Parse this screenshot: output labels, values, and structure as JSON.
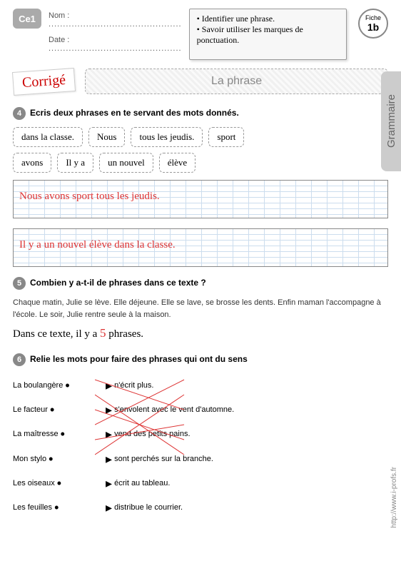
{
  "header": {
    "level": "Ce1",
    "nom_label": "Nom :",
    "date_label": "Date :",
    "dots": "..............................................",
    "obj1": "Identifier une phrase.",
    "obj2": "Savoir utiliser les marques de ponctuation.",
    "fiche_label": "Fiche",
    "fiche_num": "1b"
  },
  "sidebar": {
    "subject": "Grammaire",
    "credit": "http://www.i-profs.fr"
  },
  "corrige": "Corrigé",
  "title": "La phrase",
  "ex4": {
    "num": "4",
    "instr": "Ecris deux phrases en te servant des mots donnés.",
    "words1": [
      "dans la classe.",
      "Nous",
      "tous les jeudis.",
      "sport"
    ],
    "words2": [
      "avons",
      "Il y a",
      "un nouvel",
      "élève"
    ],
    "ans1": "Nous avons sport tous les jeudis.",
    "ans2": "Il y a un nouvel élève dans la classe."
  },
  "ex5": {
    "num": "5",
    "instr": "Combien y a-t-il de phrases dans ce texte ?",
    "text": "Chaque matin, Julie se lève. Elle déjeune. Elle se lave, se brosse les dents. Enfin maman l'accompagne à l'école. Le soir, Julie rentre seule à la maison.",
    "ans_pre": "Dans ce texte, il y a ",
    "ans_num": "5",
    "ans_post": " phrases."
  },
  "ex6": {
    "num": "6",
    "instr": "Relie les mots pour faire des phrases qui ont du sens",
    "left": [
      "La boulangère",
      "Le facteur",
      "La maîtresse",
      "Mon stylo",
      "Les oiseaux",
      "Les feuilles"
    ],
    "right": [
      "n'écrit plus.",
      "s'envolent avec le vent d'automne.",
      "vend des petits pains.",
      "sont perchés sur la branche.",
      "écrit au tableau.",
      "distribue le courrier."
    ],
    "lines": [
      [
        0,
        2
      ],
      [
        1,
        5
      ],
      [
        2,
        4
      ],
      [
        3,
        0
      ],
      [
        4,
        3
      ],
      [
        5,
        1
      ]
    ]
  }
}
